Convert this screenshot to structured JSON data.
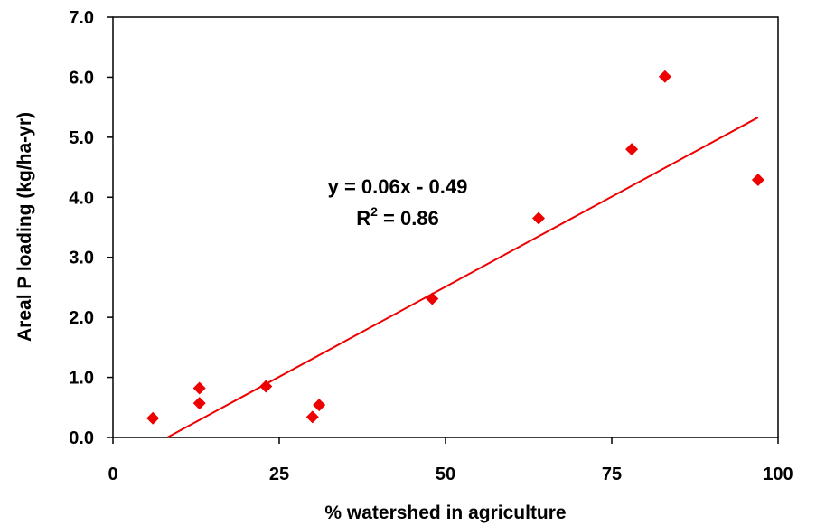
{
  "chart_data": {
    "type": "scatter",
    "xlabel": "% watershed in agriculture",
    "ylabel": "Areal P loading (kg/ha-yr)",
    "xlim": [
      0,
      100
    ],
    "ylim": [
      0,
      7
    ],
    "x_ticks": [
      0,
      25,
      50,
      75,
      100
    ],
    "x_tick_labels": [
      "0",
      "25",
      "50",
      "75",
      "100"
    ],
    "y_ticks": [
      0,
      1,
      2,
      3,
      4,
      5,
      6,
      7
    ],
    "y_tick_labels": [
      "0.0",
      "1.0",
      "2.0",
      "3.0",
      "4.0",
      "5.0",
      "6.0",
      "7.0"
    ],
    "grid": false,
    "points": [
      {
        "x": 6,
        "y": 0.32
      },
      {
        "x": 13,
        "y": 0.82
      },
      {
        "x": 13,
        "y": 0.57
      },
      {
        "x": 23,
        "y": 0.85
      },
      {
        "x": 30,
        "y": 0.34
      },
      {
        "x": 31,
        "y": 0.54
      },
      {
        "x": 48,
        "y": 2.31
      },
      {
        "x": 64,
        "y": 3.65
      },
      {
        "x": 78,
        "y": 4.8
      },
      {
        "x": 83,
        "y": 6.01
      },
      {
        "x": 97,
        "y": 4.29
      }
    ],
    "trendline": {
      "slope": 0.06,
      "intercept": -0.49,
      "x_range": [
        8.2,
        97
      ]
    },
    "annotation": {
      "equation": "y = 0.06x - 0.49",
      "r2_prefix": "R",
      "r2_sup": "2",
      "r2_suffix": " = 0.86"
    },
    "colors": {
      "points": "#ee0000",
      "trendline": "#ee0000",
      "axes": "#000000"
    }
  }
}
